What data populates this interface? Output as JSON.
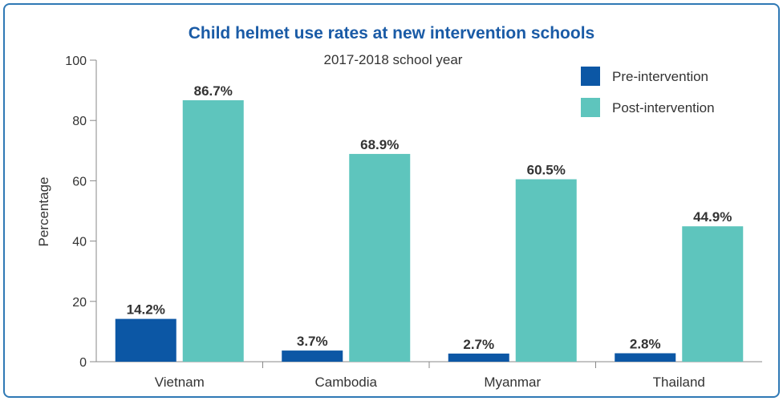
{
  "chart_data": {
    "type": "bar",
    "title": "Child helmet use rates at new intervention schools",
    "subtitle": "2017-2018 school year",
    "xlabel": "",
    "ylabel": "Percentage",
    "ylim": [
      0,
      100
    ],
    "yticks": [
      0,
      20,
      40,
      60,
      80,
      100
    ],
    "categories": [
      "Vietnam",
      "Cambodia",
      "Myanmar",
      "Thailand"
    ],
    "series": [
      {
        "name": "Pre-intervention",
        "color": "#0c57a5",
        "values": [
          14.2,
          3.7,
          2.7,
          2.8
        ],
        "labels": [
          "14.2%",
          "3.7%",
          "2.7%",
          "2.8%"
        ]
      },
      {
        "name": "Post-intervention",
        "color": "#5ec5bd",
        "values": [
          86.7,
          68.9,
          60.5,
          44.9
        ],
        "labels": [
          "86.7%",
          "68.9%",
          "60.5%",
          "44.9%"
        ]
      }
    ],
    "legend_position": "top-right",
    "grid": false
  }
}
